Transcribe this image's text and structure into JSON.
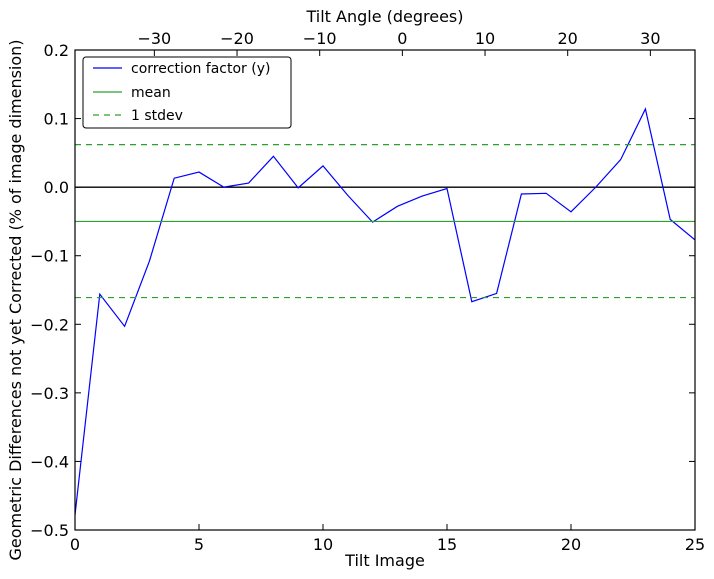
{
  "chart_data": {
    "type": "line",
    "xlabel": "Tilt Image",
    "ylabel": "Geometric Differences not yet Corrected (% of image dimension)",
    "top_xlabel": "Tilt Angle (degrees)",
    "xlim": [
      0,
      25
    ],
    "ylim": [
      -0.5,
      0.2
    ],
    "x_ticks": [
      0,
      5,
      10,
      15,
      20,
      25
    ],
    "x_tick_labels": [
      "0",
      "5",
      "10",
      "15",
      "20",
      "25"
    ],
    "y_ticks": [
      -0.5,
      -0.4,
      -0.3,
      -0.2,
      -0.1,
      0.0,
      0.1,
      0.2
    ],
    "y_tick_labels": [
      "−0.5",
      "−0.4",
      "−0.3",
      "−0.2",
      "−0.1",
      "0.0",
      "0.1",
      "0.2"
    ],
    "top_axis": {
      "xlim": [
        -39.6,
        35.4
      ],
      "ticks": [
        -30,
        -20,
        -10,
        0,
        10,
        20,
        30
      ],
      "tick_labels": [
        "−30",
        "−20",
        "−10",
        "0",
        "10",
        "20",
        "30"
      ]
    },
    "grid": false,
    "legend_position": "top-left",
    "series": [
      {
        "name": "correction factor (y)",
        "color": "#0000ff",
        "style": "solid",
        "x": [
          0,
          1,
          2,
          3,
          4,
          5,
          6,
          7,
          8,
          9,
          10,
          11,
          12,
          13,
          14,
          15,
          16,
          17,
          18,
          19,
          20,
          21,
          22,
          23,
          24,
          25
        ],
        "y": [
          -0.478,
          -0.156,
          -0.203,
          -0.108,
          0.013,
          0.022,
          0.0,
          0.006,
          0.045,
          -0.001,
          0.031,
          -0.012,
          -0.051,
          -0.028,
          -0.013,
          -0.002,
          -0.167,
          -0.155,
          -0.01,
          -0.009,
          -0.036,
          0.0,
          0.04,
          0.114,
          -0.047,
          -0.077
        ]
      },
      {
        "name": "mean",
        "color": "#2ca02c",
        "style": "solid",
        "x": [
          0,
          25
        ],
        "y": [
          -0.05,
          -0.05
        ]
      },
      {
        "name": "1 stdev",
        "color": "#2ca02c",
        "style": "dashed",
        "x": [
          0,
          25
        ],
        "y": [
          0.062,
          0.062
        ],
        "x2": [
          0,
          25
        ],
        "y2": [
          -0.161,
          -0.161
        ]
      }
    ],
    "reference_lines": [
      {
        "y": 0.0,
        "color": "#000000"
      }
    ]
  }
}
